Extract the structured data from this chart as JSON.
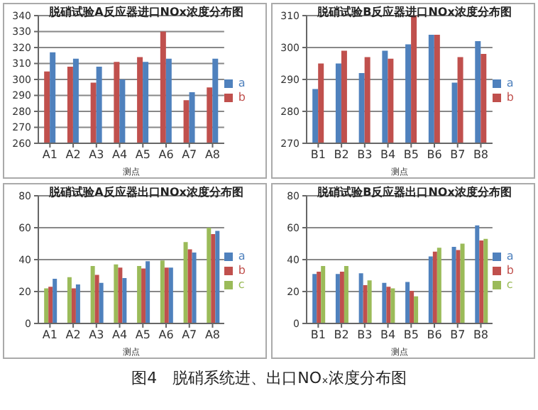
{
  "chart_data": [
    {
      "type": "bar",
      "title": "脱硝试验A反应器进口NOx浓度分布图",
      "xlabel": "测点",
      "categories": [
        "A1",
        "A2",
        "A3",
        "A4",
        "A5",
        "A6",
        "A7",
        "A8"
      ],
      "ylim": [
        260,
        340
      ],
      "yticks": [
        260,
        270,
        280,
        290,
        300,
        310,
        320,
        330,
        340
      ],
      "grid": "y",
      "legend": "right",
      "series": [
        {
          "name": "b",
          "color": "#c0504d",
          "values": [
            305,
            308,
            298,
            311,
            314,
            330,
            287,
            295
          ]
        },
        {
          "name": "a",
          "color": "#4f81bd",
          "values": [
            317,
            313,
            308,
            300,
            311,
            313,
            292,
            313
          ]
        }
      ]
    },
    {
      "type": "bar",
      "title": "脱硝试验B反应器进口NOx浓度分布图",
      "xlabel": "测点",
      "categories": [
        "B1",
        "B2",
        "B3",
        "B4",
        "B5",
        "B6",
        "B7",
        "B8"
      ],
      "ylim": [
        270,
        310
      ],
      "yticks": [
        270,
        280,
        290,
        300,
        310
      ],
      "grid": "y",
      "legend": "right",
      "series": [
        {
          "name": "a",
          "color": "#4f81bd",
          "values": [
            287,
            295,
            292,
            299,
            301,
            304,
            289,
            302
          ]
        },
        {
          "name": "b",
          "color": "#c0504d",
          "values": [
            295,
            299,
            297,
            296.5,
            310,
            304,
            297,
            298
          ]
        }
      ]
    },
    {
      "type": "bar",
      "title": "脱硝试验A反应器出口NOx浓度分布图",
      "xlabel": "测点",
      "categories": [
        "A1",
        "A2",
        "A3",
        "A4",
        "A5",
        "A6",
        "A7",
        "A8"
      ],
      "ylim": [
        0,
        80
      ],
      "yticks": [
        0,
        20,
        40,
        60,
        80
      ],
      "grid": "y",
      "legend": "right",
      "series": [
        {
          "name": "c",
          "color": "#9bbb59",
          "values": [
            22,
            29,
            36,
            37,
            36,
            39.5,
            51,
            60
          ]
        },
        {
          "name": "b",
          "color": "#c0504d",
          "values": [
            23,
            22,
            30.5,
            35,
            34.5,
            35,
            46.5,
            56
          ]
        },
        {
          "name": "a",
          "color": "#4f81bd",
          "values": [
            28,
            24.5,
            25.5,
            28.5,
            39,
            35,
            44.5,
            58
          ]
        }
      ]
    },
    {
      "type": "bar",
      "title": "脱硝试验B反应器出口NOx浓度分布图",
      "xlabel": "测点",
      "categories": [
        "B1",
        "B2",
        "B3",
        "B4",
        "B5",
        "B6",
        "B7",
        "B8"
      ],
      "ylim": [
        0,
        80
      ],
      "yticks": [
        0,
        20,
        40,
        60,
        80
      ],
      "grid": "y",
      "legend": "right",
      "series": [
        {
          "name": "a",
          "color": "#4f81bd",
          "values": [
            31,
            31,
            31.5,
            25.5,
            26,
            42,
            48,
            61.5
          ]
        },
        {
          "name": "b",
          "color": "#c0504d",
          "values": [
            32.5,
            32.5,
            24,
            23,
            20.5,
            45,
            46,
            52
          ]
        },
        {
          "name": "c",
          "color": "#9bbb59",
          "values": [
            36,
            36,
            27,
            22,
            17,
            47.5,
            50,
            53
          ]
        }
      ]
    },
    {
      "type": "other",
      "title": "图4　脱硝系统进、出口NOₓ浓度分布图"
    }
  ]
}
